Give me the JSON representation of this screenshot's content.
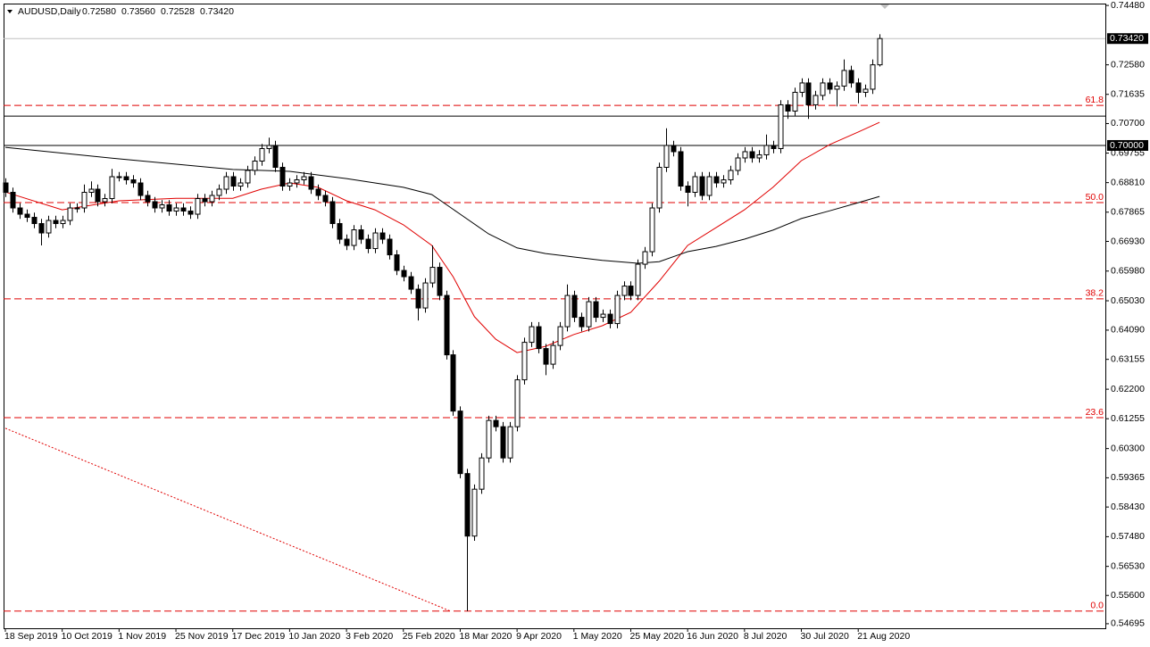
{
  "chart_data": {
    "type": "candlestick",
    "header": {
      "symbol": "AUDUSD,Daily",
      "prices": [
        "0.72580",
        "0.73560",
        "0.72528",
        "0.73420"
      ]
    },
    "ylim": [
      0.5455,
      0.7454
    ],
    "yticks": [
      {
        "value": 0.7448,
        "label": "0.74480"
      },
      {
        "value": 0.7258,
        "label": "0.72580"
      },
      {
        "value": 0.71635,
        "label": "0.71635"
      },
      {
        "value": 0.707,
        "label": "0.70700"
      },
      {
        "value": 0.69755,
        "label": "0.69755"
      },
      {
        "value": 0.6881,
        "label": "0.68810"
      },
      {
        "value": 0.67865,
        "label": "0.67865"
      },
      {
        "value": 0.6693,
        "label": "0.66930"
      },
      {
        "value": 0.6598,
        "label": "0.65980"
      },
      {
        "value": 0.6503,
        "label": "0.65030"
      },
      {
        "value": 0.6409,
        "label": "0.64090"
      },
      {
        "value": 0.63155,
        "label": "0.63155"
      },
      {
        "value": 0.622,
        "label": "0.62200"
      },
      {
        "value": 0.61255,
        "label": "0.61255"
      },
      {
        "value": 0.603,
        "label": "0.60300"
      },
      {
        "value": 0.59365,
        "label": "0.59365"
      },
      {
        "value": 0.5843,
        "label": "0.58430"
      },
      {
        "value": 0.5748,
        "label": "0.57480"
      },
      {
        "value": 0.5653,
        "label": "0.56530"
      },
      {
        "value": 0.556,
        "label": "0.55600"
      },
      {
        "value": 0.54695,
        "label": "0.54695"
      }
    ],
    "xticks": [
      {
        "value": 0,
        "label": "18 Sep 2019"
      },
      {
        "value": 8,
        "label": "10 Oct 2019"
      },
      {
        "value": 16,
        "label": "1 Nov 2019"
      },
      {
        "value": 24,
        "label": "25 Nov 2019"
      },
      {
        "value": 32,
        "label": "17 Dec 2019"
      },
      {
        "value": 40,
        "label": "10 Jan 2020"
      },
      {
        "value": 48,
        "label": "3 Feb 2020"
      },
      {
        "value": 56,
        "label": "25 Feb 2020"
      },
      {
        "value": 64,
        "label": "18 Mar 2020"
      },
      {
        "value": 72,
        "label": "9 Apr 2020"
      },
      {
        "value": 80,
        "label": "1 May 2020"
      },
      {
        "value": 88,
        "label": "25 May 2020"
      },
      {
        "value": 96,
        "label": "16 Jun 2020"
      },
      {
        "value": 104,
        "label": "8 Jul 2020"
      },
      {
        "value": 112,
        "label": "30 Jul 2020"
      },
      {
        "value": 120,
        "label": "21 Aug 2020"
      }
    ],
    "ohlc": [
      [
        0.688,
        0.6895,
        0.6835,
        0.685
      ],
      [
        0.685,
        0.6865,
        0.6785,
        0.68
      ],
      [
        0.68,
        0.6815,
        0.6765,
        0.678
      ],
      [
        0.678,
        0.6795,
        0.6755,
        0.677
      ],
      [
        0.677,
        0.6785,
        0.6735,
        0.675
      ],
      [
        0.675,
        0.6765,
        0.668,
        0.672
      ],
      [
        0.672,
        0.6775,
        0.6705,
        0.676
      ],
      [
        0.676,
        0.6775,
        0.6735,
        0.675
      ],
      [
        0.675,
        0.6775,
        0.6735,
        0.676
      ],
      [
        0.676,
        0.6815,
        0.6745,
        0.68
      ],
      [
        0.68,
        0.6815,
        0.6785,
        0.68
      ],
      [
        0.68,
        0.6875,
        0.6785,
        0.685
      ],
      [
        0.685,
        0.6885,
        0.6835,
        0.686
      ],
      [
        0.686,
        0.6875,
        0.6805,
        0.682
      ],
      [
        0.682,
        0.6845,
        0.6805,
        0.683
      ],
      [
        0.683,
        0.6925,
        0.6815,
        0.69
      ],
      [
        0.69,
        0.6915,
        0.6885,
        0.69
      ],
      [
        0.69,
        0.6915,
        0.6875,
        0.689
      ],
      [
        0.689,
        0.6905,
        0.6865,
        0.688
      ],
      [
        0.688,
        0.6895,
        0.6825,
        0.684
      ],
      [
        0.684,
        0.6855,
        0.6805,
        0.682
      ],
      [
        0.682,
        0.6835,
        0.6785,
        0.68
      ],
      [
        0.68,
        0.6825,
        0.6785,
        0.681
      ],
      [
        0.681,
        0.6825,
        0.6775,
        0.679
      ],
      [
        0.679,
        0.6815,
        0.6775,
        0.68
      ],
      [
        0.68,
        0.6815,
        0.6775,
        0.679
      ],
      [
        0.679,
        0.6805,
        0.6765,
        0.678
      ],
      [
        0.678,
        0.6845,
        0.6765,
        0.683
      ],
      [
        0.683,
        0.6845,
        0.6805,
        0.682
      ],
      [
        0.682,
        0.6855,
        0.6805,
        0.684
      ],
      [
        0.684,
        0.6875,
        0.6825,
        0.686
      ],
      [
        0.686,
        0.6915,
        0.6845,
        0.69
      ],
      [
        0.69,
        0.6915,
        0.6855,
        0.687
      ],
      [
        0.687,
        0.6895,
        0.6855,
        0.688
      ],
      [
        0.688,
        0.6935,
        0.6865,
        0.692
      ],
      [
        0.692,
        0.6965,
        0.6905,
        0.695
      ],
      [
        0.695,
        0.7005,
        0.6935,
        0.699
      ],
      [
        0.699,
        0.7025,
        0.6975,
        0.7
      ],
      [
        0.7,
        0.7015,
        0.6915,
        0.693
      ],
      [
        0.693,
        0.6945,
        0.6855,
        0.687
      ],
      [
        0.687,
        0.6895,
        0.6855,
        0.688
      ],
      [
        0.688,
        0.6905,
        0.6865,
        0.689
      ],
      [
        0.689,
        0.6915,
        0.6875,
        0.69
      ],
      [
        0.69,
        0.6915,
        0.6845,
        0.686
      ],
      [
        0.686,
        0.6875,
        0.6825,
        0.684
      ],
      [
        0.684,
        0.6855,
        0.6805,
        0.682
      ],
      [
        0.682,
        0.6835,
        0.6735,
        0.675
      ],
      [
        0.675,
        0.6765,
        0.6685,
        0.67
      ],
      [
        0.67,
        0.6715,
        0.6665,
        0.668
      ],
      [
        0.668,
        0.6745,
        0.6665,
        0.673
      ],
      [
        0.673,
        0.6745,
        0.6685,
        0.67
      ],
      [
        0.67,
        0.6715,
        0.6655,
        0.667
      ],
      [
        0.667,
        0.6735,
        0.6655,
        0.672
      ],
      [
        0.672,
        0.6735,
        0.6685,
        0.67
      ],
      [
        0.67,
        0.6715,
        0.6635,
        0.665
      ],
      [
        0.665,
        0.6665,
        0.6585,
        0.66
      ],
      [
        0.66,
        0.6615,
        0.6565,
        0.658
      ],
      [
        0.658,
        0.6595,
        0.6525,
        0.654
      ],
      [
        0.654,
        0.6555,
        0.644,
        0.648
      ],
      [
        0.648,
        0.6575,
        0.6465,
        0.656
      ],
      [
        0.656,
        0.668,
        0.6545,
        0.661
      ],
      [
        0.661,
        0.6625,
        0.6505,
        0.652
      ],
      [
        0.652,
        0.6535,
        0.6315,
        0.633
      ],
      [
        0.633,
        0.6345,
        0.6135,
        0.615
      ],
      [
        0.615,
        0.6165,
        0.5935,
        0.595
      ],
      [
        0.595,
        0.5965,
        0.551,
        0.575
      ],
      [
        0.575,
        0.5915,
        0.5735,
        0.59
      ],
      [
        0.59,
        0.6015,
        0.5885,
        0.6
      ],
      [
        0.6,
        0.6135,
        0.5985,
        0.612
      ],
      [
        0.612,
        0.6135,
        0.6085,
        0.61
      ],
      [
        0.61,
        0.6115,
        0.5985,
        0.6
      ],
      [
        0.6,
        0.6115,
        0.5985,
        0.61
      ],
      [
        0.61,
        0.6265,
        0.6085,
        0.625
      ],
      [
        0.625,
        0.6385,
        0.6235,
        0.637
      ],
      [
        0.637,
        0.6435,
        0.6355,
        0.642
      ],
      [
        0.642,
        0.6435,
        0.6335,
        0.635
      ],
      [
        0.635,
        0.6365,
        0.6265,
        0.63
      ],
      [
        0.63,
        0.6375,
        0.6285,
        0.636
      ],
      [
        0.636,
        0.6435,
        0.6345,
        0.642
      ],
      [
        0.642,
        0.6555,
        0.6405,
        0.652
      ],
      [
        0.652,
        0.6535,
        0.6435,
        0.645
      ],
      [
        0.645,
        0.6465,
        0.6405,
        0.642
      ],
      [
        0.642,
        0.6515,
        0.6405,
        0.65
      ],
      [
        0.65,
        0.6515,
        0.6435,
        0.645
      ],
      [
        0.645,
        0.6475,
        0.6435,
        0.646
      ],
      [
        0.646,
        0.6475,
        0.6415,
        0.643
      ],
      [
        0.643,
        0.6535,
        0.6415,
        0.652
      ],
      [
        0.652,
        0.6565,
        0.6505,
        0.655
      ],
      [
        0.655,
        0.6565,
        0.6505,
        0.652
      ],
      [
        0.652,
        0.6635,
        0.6505,
        0.662
      ],
      [
        0.662,
        0.6675,
        0.6605,
        0.666
      ],
      [
        0.666,
        0.6815,
        0.6645,
        0.68
      ],
      [
        0.68,
        0.6945,
        0.6785,
        0.693
      ],
      [
        0.693,
        0.7055,
        0.6915,
        0.7
      ],
      [
        0.7,
        0.7015,
        0.6965,
        0.698
      ],
      [
        0.698,
        0.6995,
        0.6855,
        0.687
      ],
      [
        0.687,
        0.6885,
        0.6805,
        0.685
      ],
      [
        0.685,
        0.6915,
        0.6835,
        0.69
      ],
      [
        0.69,
        0.6915,
        0.6825,
        0.684
      ],
      [
        0.684,
        0.6915,
        0.6825,
        0.69
      ],
      [
        0.69,
        0.6915,
        0.6865,
        0.688
      ],
      [
        0.688,
        0.6905,
        0.6865,
        0.689
      ],
      [
        0.689,
        0.6935,
        0.6875,
        0.692
      ],
      [
        0.692,
        0.6975,
        0.6905,
        0.696
      ],
      [
        0.696,
        0.6995,
        0.6945,
        0.698
      ],
      [
        0.698,
        0.6995,
        0.6945,
        0.696
      ],
      [
        0.696,
        0.6985,
        0.6945,
        0.697
      ],
      [
        0.697,
        0.7035,
        0.6955,
        0.7
      ],
      [
        0.7,
        0.7015,
        0.6975,
        0.699
      ],
      [
        0.699,
        0.7145,
        0.6975,
        0.713
      ],
      [
        0.713,
        0.7145,
        0.7085,
        0.711
      ],
      [
        0.711,
        0.7185,
        0.7095,
        0.717
      ],
      [
        0.717,
        0.7215,
        0.7155,
        0.72
      ],
      [
        0.72,
        0.7215,
        0.7085,
        0.713
      ],
      [
        0.713,
        0.7175,
        0.7115,
        0.716
      ],
      [
        0.716,
        0.7215,
        0.7145,
        0.72
      ],
      [
        0.72,
        0.7215,
        0.7165,
        0.718
      ],
      [
        0.718,
        0.7205,
        0.7125,
        0.719
      ],
      [
        0.719,
        0.7275,
        0.7175,
        0.724
      ],
      [
        0.724,
        0.7255,
        0.7185,
        0.72
      ],
      [
        0.72,
        0.7215,
        0.7135,
        0.717
      ],
      [
        0.717,
        0.7195,
        0.7155,
        0.718
      ],
      [
        0.718,
        0.7275,
        0.7165,
        0.7258
      ],
      [
        0.7258,
        0.7356,
        0.72528,
        0.7342
      ]
    ],
    "series": [
      {
        "color": "#e00000",
        "x": [
          0,
          8,
          16,
          24,
          32,
          36,
          40,
          44,
          48,
          52,
          56,
          60,
          63,
          66,
          69,
          72,
          76,
          80,
          84,
          88,
          92,
          96,
          100,
          104,
          108,
          112,
          116,
          120,
          123
        ],
        "values": [
          0.6851,
          0.6794,
          0.6823,
          0.6831,
          0.6831,
          0.686,
          0.688,
          0.6866,
          0.6823,
          0.6794,
          0.6746,
          0.668,
          0.658,
          0.6452,
          0.638,
          0.6337,
          0.6357,
          0.6395,
          0.6423,
          0.6466,
          0.6566,
          0.668,
          0.6737,
          0.6794,
          0.6866,
          0.6951,
          0.7003,
          0.7043,
          0.7074
        ]
      },
      {
        "color": "#000000",
        "x": [
          0,
          16,
          32,
          40,
          48,
          56,
          60,
          64,
          68,
          72,
          76,
          80,
          84,
          89,
          92,
          96,
          100,
          104,
          108,
          112,
          116,
          120,
          123
        ],
        "values": [
          0.6994,
          0.6957,
          0.6923,
          0.6917,
          0.6894,
          0.6866,
          0.6843,
          0.678,
          0.6717,
          0.6672,
          0.6654,
          0.6643,
          0.6632,
          0.6623,
          0.6628,
          0.666,
          0.6677,
          0.67,
          0.6729,
          0.6766,
          0.6791,
          0.6817,
          0.6837
        ]
      }
    ],
    "hlines": [
      {
        "value": 0.7094,
        "color": "#000000"
      },
      {
        "value": 0.7,
        "label": "0.70000",
        "color": "#000000"
      },
      {
        "value": 0.7342,
        "label": "0.73420",
        "color": "#c0c0c0"
      }
    ],
    "fib_levels": [
      {
        "value": 0.7128,
        "label": "61.8"
      },
      {
        "value": 0.6817,
        "label": "50.0"
      },
      {
        "value": 0.6509,
        "label": "38.2"
      },
      {
        "value": 0.6129,
        "label": "23.6"
      },
      {
        "value": 0.551,
        "label": "0.0"
      }
    ],
    "fib_color": "#e00000",
    "trendline": {
      "color": "#e00000",
      "x": [
        0,
        62.6
      ],
      "values": [
        0.6095,
        0.551
      ]
    }
  }
}
